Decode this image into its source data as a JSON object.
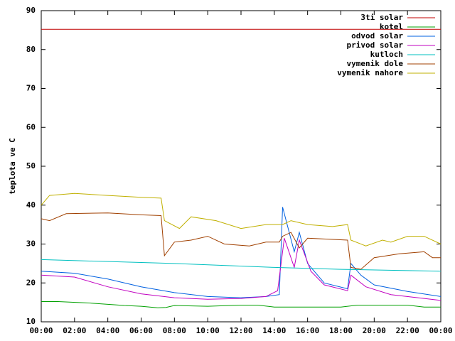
{
  "chart_data": {
    "type": "line",
    "y_label": "teplota ve C",
    "xlim": [
      0,
      24
    ],
    "xticks": [
      {
        "value": 0,
        "label": "00:00"
      },
      {
        "value": 2,
        "label": "02:00"
      },
      {
        "value": 4,
        "label": "04:00"
      },
      {
        "value": 6,
        "label": "06:00"
      },
      {
        "value": 8,
        "label": "08:00"
      },
      {
        "value": 10,
        "label": "10:00"
      },
      {
        "value": 12,
        "label": "12:00"
      },
      {
        "value": 14,
        "label": "14:00"
      },
      {
        "value": 16,
        "label": "16:00"
      },
      {
        "value": 18,
        "label": "18:00"
      },
      {
        "value": 20,
        "label": "20:00"
      },
      {
        "value": 22,
        "label": "22:00"
      },
      {
        "value": 24,
        "label": "00:00"
      }
    ],
    "ylim": [
      10,
      90
    ],
    "yticks": [
      10,
      20,
      30,
      40,
      50,
      60,
      70,
      80,
      90
    ],
    "legend": "top-right",
    "series": [
      {
        "name": "3ti solar",
        "color": "#c00000",
        "x": [
          0,
          24
        ],
        "values": [
          85.2,
          85.2
        ]
      },
      {
        "name": "kotel",
        "color": "#00a000",
        "x": [
          0,
          1,
          3,
          5,
          6,
          7,
          7.5,
          8,
          10,
          12,
          13,
          14,
          16,
          18,
          19,
          22,
          23,
          24
        ],
        "values": [
          15.2,
          15.2,
          14.8,
          14.2,
          14,
          13.6,
          13.7,
          14.2,
          14,
          14.3,
          14.3,
          13.8,
          13.8,
          13.8,
          14.3,
          14.3,
          13.8,
          13.8
        ]
      },
      {
        "name": "odvod solar",
        "color": "#0060e0",
        "x": [
          0,
          2,
          4,
          6,
          8,
          10,
          12,
          13.5,
          14.3,
          14.5,
          15.2,
          15.5,
          16,
          17,
          18.4,
          18.6,
          19.2,
          20,
          22,
          24
        ],
        "values": [
          23,
          22.5,
          21,
          19,
          17.5,
          16.5,
          16.2,
          16.5,
          17,
          39.5,
          28,
          33,
          25,
          20,
          18.5,
          25,
          22,
          19.5,
          17.8,
          16.5
        ]
      },
      {
        "name": "privod solar",
        "color": "#c000c0",
        "x": [
          0,
          2,
          4,
          6,
          8,
          10,
          12,
          13.5,
          14.2,
          14.6,
          15.2,
          15.5,
          16.2,
          17,
          18.4,
          18.6,
          19.5,
          21,
          23,
          24
        ],
        "values": [
          22,
          21.5,
          19,
          17.2,
          16.2,
          15.8,
          16,
          16.5,
          18,
          31.5,
          24,
          31,
          23,
          19.5,
          18,
          22,
          19,
          17,
          16,
          15.5
        ]
      },
      {
        "name": "kutloch",
        "color": "#00c0c0",
        "x": [
          0,
          8,
          14,
          18,
          24
        ],
        "values": [
          26,
          25,
          24,
          23.5,
          23
        ]
      },
      {
        "name": "vymenik dole",
        "color": "#a04000",
        "x": [
          0,
          0.5,
          1.5,
          4,
          6,
          7.2,
          7.4,
          8,
          9,
          10,
          11,
          12.5,
          13.5,
          14.3,
          14.5,
          15,
          15.5,
          16,
          18.4,
          18.6,
          19.2,
          20,
          21.5,
          23,
          23.5,
          24
        ],
        "values": [
          36.5,
          36,
          37.8,
          38,
          37.5,
          37.3,
          27,
          30.5,
          31,
          32,
          30,
          29.5,
          30.5,
          30.5,
          32,
          33,
          29,
          31.5,
          31,
          24,
          23.5,
          26.5,
          27.5,
          28,
          26.5,
          26.5
        ]
      },
      {
        "name": "vymenik nahore",
        "color": "#c0b000",
        "x": [
          0,
          0.5,
          2,
          4,
          6,
          7.2,
          7.4,
          8.3,
          9,
          10.5,
          12,
          13.5,
          14.5,
          15,
          16,
          17.5,
          18.4,
          18.6,
          19.5,
          20.5,
          21,
          22,
          23,
          24
        ],
        "values": [
          40,
          42.5,
          43,
          42.5,
          42,
          41.8,
          36,
          34,
          37,
          36,
          34,
          35,
          35,
          36,
          35,
          34.5,
          35,
          31,
          29.5,
          31,
          30.5,
          32,
          32,
          30
        ]
      }
    ]
  }
}
